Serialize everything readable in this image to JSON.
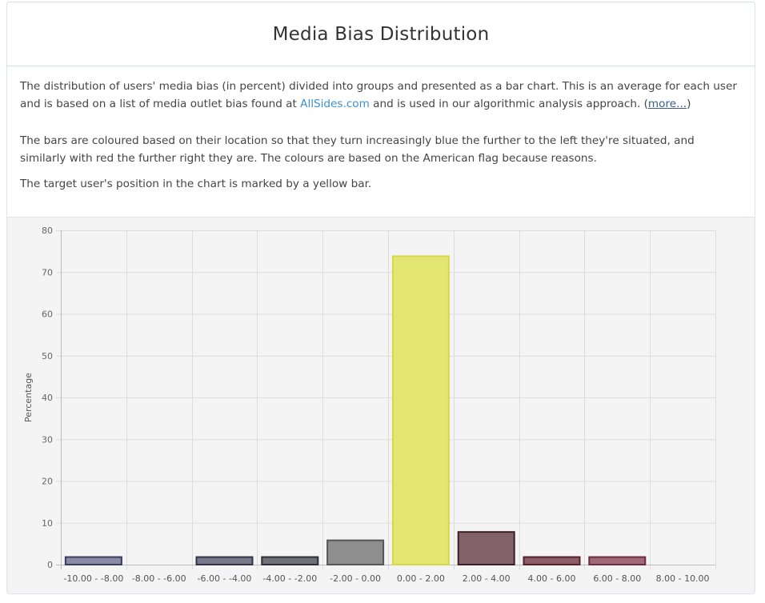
{
  "panel": {
    "title": "Media Bias Distribution",
    "p1_before": "The distribution of users' media bias (in percent) divided into groups and presented as a bar chart. This is an average for each user and is based on a list of media outlet bias found at ",
    "p1_link": "AllSides.com",
    "p1_after": " and is used in our algorithmic analysis approach. (",
    "p1_more": "more...",
    "p1_close": ")",
    "p2": "The bars are coloured based on their location so that they turn increasingly blue the further to the left they're situated, and similarly with red the further right they are. The colours are based on the American flag because reasons.",
    "p3": "The target user's position in the chart is marked by a yellow bar."
  },
  "colors": {
    "link": "#3d8fd1",
    "highlight_fill": "#e4e673",
    "highlight_stroke": "#d6d84a"
  },
  "chart_data": {
    "type": "bar",
    "title": "",
    "xlabel": "",
    "ylabel": "Percentage",
    "ylim": [
      0,
      80
    ],
    "yticks": [
      0,
      10,
      20,
      30,
      40,
      50,
      60,
      70,
      80
    ],
    "grid": true,
    "categories": [
      "-10.00 - -8.00",
      "-8.00 - -6.00",
      "-6.00 - -4.00",
      "-4.00 - -2.00",
      "-2.00 - 0.00",
      "0.00 - 2.00",
      "2.00 - 4.00",
      "4.00 - 6.00",
      "6.00 - 8.00",
      "8.00 - 10.00"
    ],
    "values": [
      2,
      0,
      2,
      2,
      6,
      74,
      8,
      2,
      2,
      0
    ],
    "bar_fills": [
      "#8a8aa6",
      "#7f7f99",
      "#77778a",
      "#707079",
      "#8e8e8e",
      "#e4e673",
      "#84626a",
      "#8c5e68",
      "#a06878",
      "#a86c7e"
    ],
    "bar_strokes": [
      "#3b3b5e",
      "#38385a",
      "#333344",
      "#2e2e37",
      "#555555",
      "#d6d84a",
      "#3c1e26",
      "#5a1f2f",
      "#6a2c3e",
      "#6e2f42"
    ]
  }
}
